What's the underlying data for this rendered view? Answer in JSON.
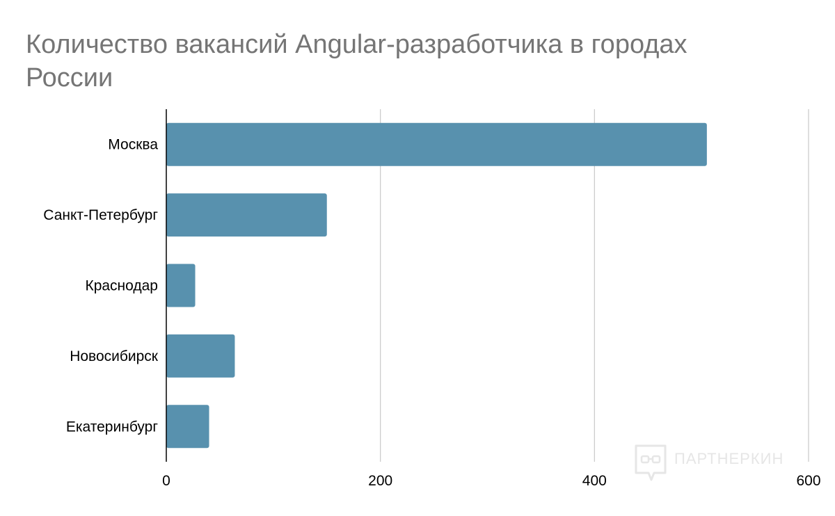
{
  "chart_data": {
    "type": "bar",
    "orientation": "horizontal",
    "title_lines": [
      "Количество вакансий Angular-разработчика в городах",
      "России"
    ],
    "categories": [
      "Москва",
      "Санкт-Петербург",
      "Краснодар",
      "Новосибирск",
      "Екатеринбург"
    ],
    "values": [
      505,
      150,
      27,
      64,
      40
    ],
    "xlim": [
      0,
      600
    ],
    "xticks": [
      "0",
      "200",
      "400",
      "600"
    ],
    "grid": true,
    "bar_color": "#5891ae"
  },
  "watermark": {
    "text": "ПАРТНЕРКИН",
    "icon": "chat-bubble-logo-icon"
  }
}
